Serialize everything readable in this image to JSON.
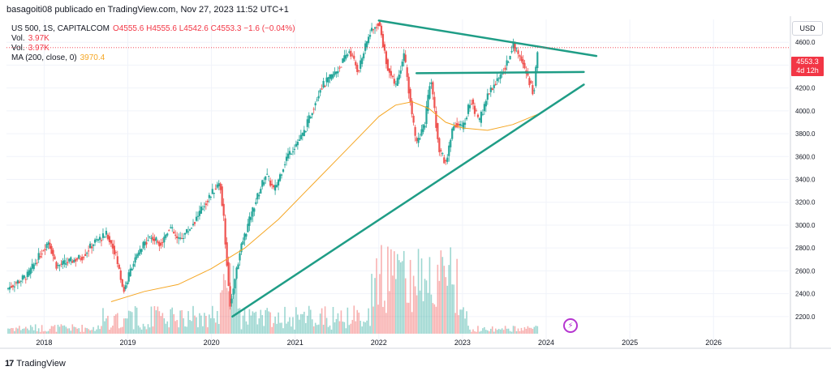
{
  "header": {
    "title": "basagoiti08 publicado en TradingView.com, Nov 27, 2023 11:52 UTC+1"
  },
  "legend": {
    "symbol": "US 500, 1S, CAPITALCOM",
    "ohlc": "O4555.6 H4555.6 L4542.6 C4553.3 −1.6 (−0.04%)",
    "vol1_label": "Vol.",
    "vol1_value": "3.97K",
    "vol2_label": "Vol.",
    "vol2_value": "3.97K",
    "ma_label": "MA (200, close, 0)",
    "ma_value": "3970.4"
  },
  "currency": "USD",
  "price_tag": {
    "price": "4553.3",
    "countdown": "4d 12h"
  },
  "footer": {
    "brand": "TradingView",
    "logo": "17"
  },
  "colors": {
    "up": "#26a69a",
    "down": "#ef5350",
    "ma": "#f5a623",
    "trend": "#1f9d86",
    "grid": "#f0f3fa"
  },
  "chart_data": {
    "type": "candlestick",
    "title": "US 500, 1S, CAPITALCOM",
    "xlabel": "",
    "ylabel": "USD",
    "y_ticks": [
      2200,
      2400,
      2600,
      2800,
      3000,
      3200,
      3400,
      3600,
      3800,
      4000,
      4200,
      4400,
      4600
    ],
    "ylim": [
      2050,
      4800
    ],
    "x_ticks": [
      "2018",
      "2019",
      "2020",
      "2021",
      "2022",
      "2023",
      "2024",
      "2025",
      "2026"
    ],
    "xlim": [
      2017.55,
      2026.9
    ],
    "last_price": 4553.3,
    "price_path": [
      [
        2017.55,
        2440
      ],
      [
        2017.8,
        2560
      ],
      [
        2018.05,
        2860
      ],
      [
        2018.15,
        2640
      ],
      [
        2018.3,
        2680
      ],
      [
        2018.45,
        2720
      ],
      [
        2018.6,
        2850
      ],
      [
        2018.75,
        2920
      ],
      [
        2018.85,
        2760
      ],
      [
        2018.95,
        2420
      ],
      [
        2019.05,
        2650
      ],
      [
        2019.25,
        2900
      ],
      [
        2019.4,
        2840
      ],
      [
        2019.5,
        2990
      ],
      [
        2019.6,
        2860
      ],
      [
        2019.75,
        2980
      ],
      [
        2019.95,
        3220
      ],
      [
        2020.1,
        3380
      ],
      [
        2020.15,
        3020
      ],
      [
        2020.22,
        2300
      ],
      [
        2020.35,
        2800
      ],
      [
        2020.5,
        3150
      ],
      [
        2020.65,
        3450
      ],
      [
        2020.75,
        3300
      ],
      [
        2020.9,
        3600
      ],
      [
        2021.1,
        3800
      ],
      [
        2021.3,
        4200
      ],
      [
        2021.5,
        4350
      ],
      [
        2021.65,
        4530
      ],
      [
        2021.75,
        4350
      ],
      [
        2021.9,
        4700
      ],
      [
        2022.0,
        4780
      ],
      [
        2022.1,
        4400
      ],
      [
        2022.2,
        4200
      ],
      [
        2022.3,
        4500
      ],
      [
        2022.4,
        3950
      ],
      [
        2022.45,
        3700
      ],
      [
        2022.55,
        3900
      ],
      [
        2022.62,
        4300
      ],
      [
        2022.72,
        3650
      ],
      [
        2022.8,
        3550
      ],
      [
        2022.9,
        3900
      ],
      [
        2023.0,
        3850
      ],
      [
        2023.1,
        4100
      ],
      [
        2023.2,
        3900
      ],
      [
        2023.3,
        4150
      ],
      [
        2023.45,
        4300
      ],
      [
        2023.55,
        4450
      ],
      [
        2023.6,
        4590
      ],
      [
        2023.7,
        4450
      ],
      [
        2023.8,
        4250
      ],
      [
        2023.85,
        4150
      ],
      [
        2023.9,
        4550
      ]
    ],
    "ma_200": [
      [
        2018.8,
        2330
      ],
      [
        2019.2,
        2420
      ],
      [
        2019.6,
        2480
      ],
      [
        2020.0,
        2620
      ],
      [
        2020.4,
        2800
      ],
      [
        2020.8,
        3050
      ],
      [
        2021.2,
        3350
      ],
      [
        2021.6,
        3650
      ],
      [
        2022.0,
        3950
      ],
      [
        2022.2,
        4050
      ],
      [
        2022.4,
        4080
      ],
      [
        2022.6,
        4020
      ],
      [
        2022.8,
        3900
      ],
      [
        2023.0,
        3850
      ],
      [
        2023.3,
        3830
      ],
      [
        2023.6,
        3880
      ],
      [
        2023.9,
        3970
      ]
    ],
    "trendlines": [
      {
        "name": "upper-resistance",
        "points": [
          [
            2022.0,
            4790
          ],
          [
            2024.6,
            4480
          ]
        ]
      },
      {
        "name": "horizontal-resistance",
        "points": [
          [
            2022.45,
            4330
          ],
          [
            2024.45,
            4340
          ]
        ]
      },
      {
        "name": "rising-support",
        "points": [
          [
            2020.25,
            2200
          ],
          [
            2024.45,
            4230
          ]
        ]
      }
    ]
  }
}
